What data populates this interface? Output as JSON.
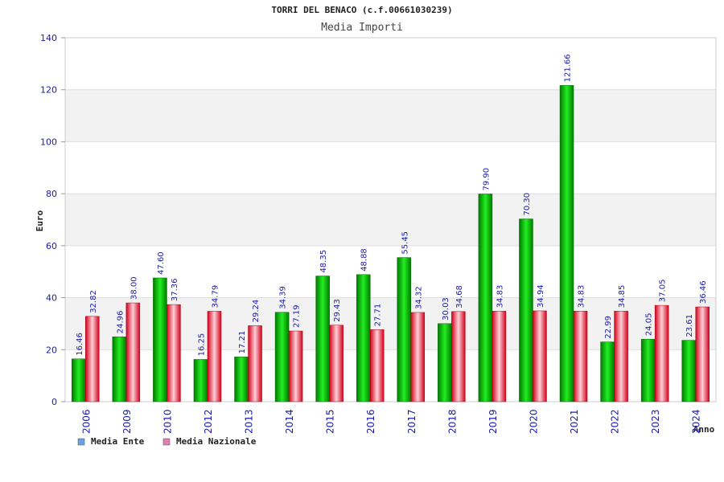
{
  "chart_data": {
    "type": "bar",
    "title": "TORRI DEL BENACO (c.f.00661030239)",
    "subtitle": "Media Importi",
    "xlabel": "Anno",
    "ylabel": "Euro",
    "ylim": [
      0,
      140
    ],
    "yticks": [
      0,
      20,
      40,
      60,
      80,
      100,
      120,
      140
    ],
    "categories": [
      "2006",
      "2009",
      "2010",
      "2012",
      "2013",
      "2014",
      "2015",
      "2016",
      "2017",
      "2018",
      "2019",
      "2020",
      "2021",
      "2022",
      "2023",
      "2024"
    ],
    "series": [
      {
        "name": "Media Ente",
        "color": "#00cc00",
        "legend_color": "#66a3e0",
        "values": [
          16.46,
          24.96,
          47.6,
          16.25,
          17.21,
          34.39,
          48.35,
          48.88,
          55.45,
          30.03,
          79.9,
          70.3,
          121.66,
          22.99,
          24.05,
          23.61
        ],
        "labels": [
          "16.46",
          "24.96",
          "47.60",
          "16.25",
          "17.21",
          "34.39",
          "48.35",
          "48.88",
          "55.45",
          "30.03",
          "79.90",
          "70.30",
          "121.66",
          "22.99",
          "24.05",
          "23.61"
        ]
      },
      {
        "name": "Media Nazionale",
        "color": "#e8203a",
        "legend_color": "#e07fb0",
        "values": [
          32.82,
          38.0,
          37.36,
          34.79,
          29.24,
          27.19,
          29.43,
          27.71,
          34.32,
          34.68,
          34.83,
          34.94,
          34.83,
          34.85,
          37.05,
          36.46
        ],
        "labels": [
          "32.82",
          "38.00",
          "37.36",
          "34.79",
          "29.24",
          "27.19",
          "29.43",
          "27.71",
          "34.32",
          "34.68",
          "34.83",
          "34.94",
          "34.83",
          "34.85",
          "37.05",
          "36.46"
        ]
      }
    ],
    "grid": true,
    "legend_position": "bottom-left"
  }
}
